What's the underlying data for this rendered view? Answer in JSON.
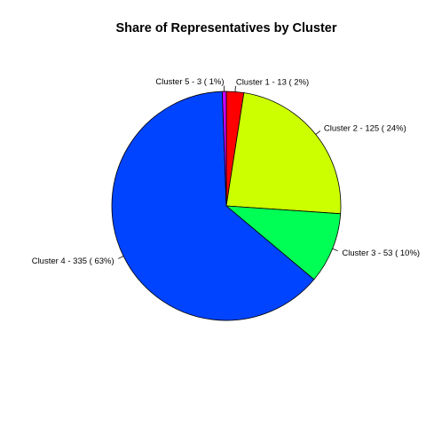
{
  "chart_data": {
    "type": "pie",
    "title": "Share of Representatives by Cluster",
    "start_angle_deg": 90,
    "direction": "clockwise",
    "slices": [
      {
        "label": "Cluster 1 -  13  ( 2%)",
        "value": 13,
        "color": "#ff0000"
      },
      {
        "label": "Cluster 2 -  125  ( 24%)",
        "value": 125,
        "color": "#ccff00"
      },
      {
        "label": "Cluster 3 -  53  ( 10%)",
        "value": 53,
        "color": "#00ff55"
      },
      {
        "label": "Cluster 4 -  335  ( 63%)",
        "value": 335,
        "color": "#0044ff"
      },
      {
        "label": "Cluster 5 -  3  ( 1%)",
        "value": 3,
        "color": "#cc00ff"
      }
    ]
  }
}
